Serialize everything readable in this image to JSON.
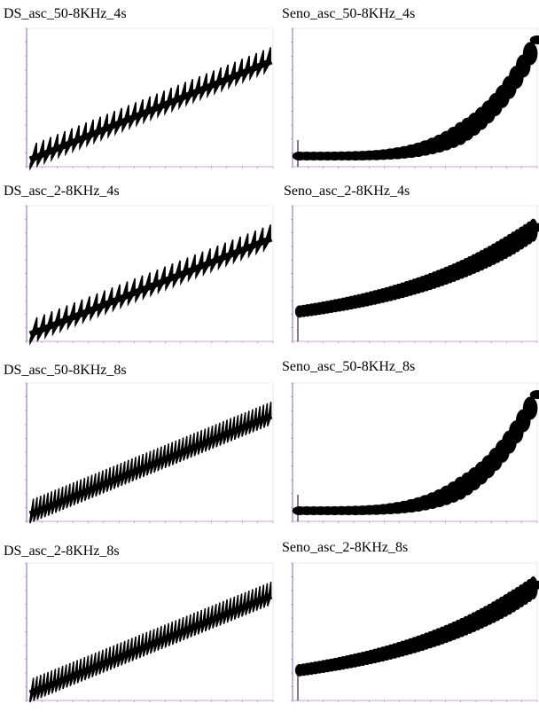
{
  "panels": [
    {
      "title": "DS_asc_50-8KHz_4s"
    },
    {
      "title": "Seno_asc_50-8KHz_4s"
    },
    {
      "title": "DS_asc_2-8KHz_4s"
    },
    {
      "title": "Seno_asc_2-8KHz_4s"
    },
    {
      "title": "DS_asc_50-8KHz_8s"
    },
    {
      "title": "Seno_asc_50-8KHz_8s"
    },
    {
      "title": "DS_asc_2-8KHz_8s"
    },
    {
      "title": "Seno_asc_2-8KHz_8s"
    }
  ]
}
